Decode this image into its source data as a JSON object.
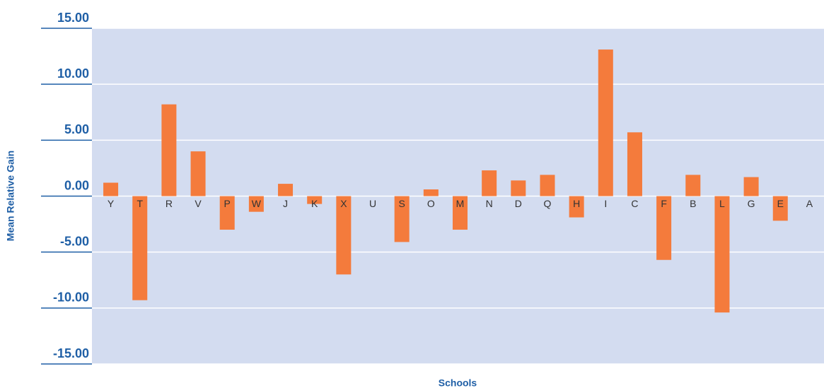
{
  "chart_data": {
    "type": "bar",
    "x_label": "Schools",
    "y_label": "Mean Relative Gain",
    "categories": [
      "Y",
      "T",
      "R",
      "V",
      "P",
      "W",
      "J",
      "K",
      "X",
      "U",
      "S",
      "O",
      "M",
      "N",
      "D",
      "Q",
      "H",
      "I",
      "C",
      "F",
      "B",
      "L",
      "G",
      "E",
      "A"
    ],
    "values": [
      1.2,
      -9.3,
      8.2,
      4.0,
      -3.0,
      -1.4,
      1.1,
      -0.7,
      -7.0,
      0,
      -4.1,
      0.6,
      -3.0,
      2.3,
      1.4,
      1.9,
      -1.9,
      13.1,
      5.7,
      -5.7,
      1.9,
      -10.4,
      1.7,
      -2.2,
      0
    ],
    "color": "#f47b3c",
    "ylim": [
      -15,
      15
    ],
    "yticks": [
      {
        "value": -15,
        "label": "-15.00"
      },
      {
        "value": -10,
        "label": "-10.00"
      },
      {
        "value": -5,
        "label": "-5.00"
      },
      {
        "value": 0,
        "label": "0.00"
      },
      {
        "value": 5,
        "label": "5.00"
      },
      {
        "value": 10,
        "label": "10.00"
      },
      {
        "value": 15,
        "label": "15.00"
      }
    ],
    "grid": true
  }
}
